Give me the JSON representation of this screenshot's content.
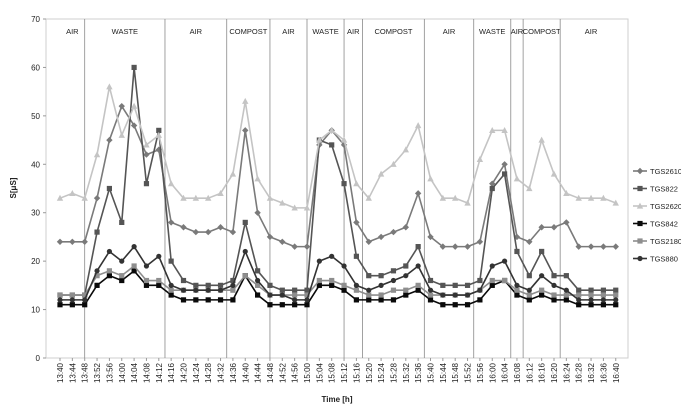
{
  "chart_data": {
    "type": "line",
    "title": "",
    "xlabel": "Time [h]",
    "ylabel": "S[μS]",
    "ylim": [
      0,
      70
    ],
    "yticks": [
      0,
      10,
      20,
      30,
      40,
      50,
      60,
      70
    ],
    "grid": false,
    "legend_position": "right",
    "x": [
      "13:40",
      "13:44",
      "13:48",
      "13:52",
      "13:56",
      "14:00",
      "14:04",
      "14:08",
      "14:12",
      "14:16",
      "14:20",
      "14:24",
      "14:28",
      "14:32",
      "14:36",
      "14:40",
      "14:44",
      "14:48",
      "14:52",
      "14:56",
      "15:00",
      "15:04",
      "15:08",
      "15:12",
      "15:16",
      "15:20",
      "15:24",
      "15:28",
      "15:32",
      "15:36",
      "15:40",
      "15:44",
      "15:48",
      "15:52",
      "15:56",
      "16:00",
      "16:04",
      "16:08",
      "16:12",
      "16:16",
      "16:20",
      "16:24",
      "16:28",
      "16:32",
      "16:36",
      "16:40"
    ],
    "segments": [
      {
        "label": "AIR",
        "start": "13:40",
        "end": "13:48"
      },
      {
        "label": "WASTE",
        "start": "13:48",
        "end": "14:14"
      },
      {
        "label": "AIR",
        "start": "14:14",
        "end": "14:34"
      },
      {
        "label": "COMPOST",
        "start": "14:34",
        "end": "14:48"
      },
      {
        "label": "AIR",
        "start": "14:48",
        "end": "15:00"
      },
      {
        "label": "WASTE",
        "start": "15:00",
        "end": "15:12"
      },
      {
        "label": "AIR",
        "start": "15:12",
        "end": "15:18"
      },
      {
        "label": "COMPOST",
        "start": "15:18",
        "end": "15:38"
      },
      {
        "label": "AIR",
        "start": "15:38",
        "end": "15:54"
      },
      {
        "label": "WASTE",
        "start": "15:54",
        "end": "16:06"
      },
      {
        "label": "AIR",
        "start": "16:06",
        "end": "16:10"
      },
      {
        "label": "COMPOST",
        "start": "16:10",
        "end": "16:22"
      },
      {
        "label": "AIR",
        "start": "16:22",
        "end": "16:42"
      }
    ],
    "series": [
      {
        "name": "TGS2610",
        "color": "#7a7a7a",
        "marker": "diamond",
        "values": [
          24,
          24,
          24,
          33,
          45,
          52,
          48,
          42,
          43,
          28,
          27,
          26,
          26,
          27,
          26,
          47,
          30,
          25,
          24,
          23,
          23,
          44,
          47,
          44,
          28,
          24,
          25,
          26,
          27,
          34,
          25,
          23,
          23,
          23,
          24,
          36,
          40,
          25,
          24,
          27,
          27,
          28,
          23,
          23,
          23,
          23
        ]
      },
      {
        "name": "TGS822",
        "color": "#555555",
        "marker": "square",
        "values": [
          13,
          13,
          13,
          26,
          35,
          28,
          60,
          36,
          47,
          20,
          16,
          15,
          15,
          15,
          16,
          28,
          18,
          15,
          14,
          14,
          14,
          45,
          44,
          36,
          21,
          17,
          17,
          18,
          19,
          23,
          16,
          15,
          15,
          15,
          16,
          35,
          38,
          22,
          17,
          22,
          17,
          17,
          14,
          14,
          14,
          14
        ]
      },
      {
        "name": "TGS2620",
        "color": "#c4c4c4",
        "marker": "triangle",
        "values": [
          33,
          34,
          33,
          42,
          56,
          46,
          52,
          44,
          46,
          36,
          33,
          33,
          33,
          34,
          38,
          53,
          37,
          33,
          32,
          31,
          31,
          45,
          47,
          45,
          36,
          33,
          38,
          40,
          43,
          48,
          37,
          33,
          33,
          32,
          41,
          47,
          47,
          37,
          35,
          45,
          38,
          34,
          33,
          33,
          33,
          32
        ]
      },
      {
        "name": "TGS842",
        "color": "#0a0a0a",
        "marker": "square",
        "values": [
          11,
          11,
          11,
          15,
          17,
          16,
          18,
          15,
          15,
          13,
          12,
          12,
          12,
          12,
          12,
          17,
          13,
          11,
          11,
          11,
          11,
          15,
          15,
          14,
          12,
          12,
          12,
          12,
          13,
          14,
          12,
          11,
          11,
          11,
          12,
          15,
          16,
          13,
          12,
          13,
          12,
          12,
          11,
          11,
          11,
          11
        ]
      },
      {
        "name": "TGS2180",
        "color": "#8e8e8e",
        "marker": "square",
        "values": [
          13,
          13,
          13,
          17,
          18,
          17,
          19,
          16,
          16,
          14,
          14,
          14,
          14,
          14,
          14,
          17,
          15,
          13,
          13,
          13,
          13,
          16,
          16,
          15,
          14,
          13,
          13,
          14,
          14,
          15,
          13,
          13,
          13,
          13,
          14,
          16,
          16,
          14,
          13,
          14,
          13,
          13,
          13,
          13,
          13,
          13
        ]
      },
      {
        "name": "TGS880",
        "color": "#333333",
        "marker": "circle",
        "values": [
          12,
          12,
          12,
          18,
          22,
          20,
          23,
          19,
          21,
          15,
          14,
          14,
          14,
          14,
          15,
          22,
          16,
          13,
          13,
          12,
          12,
          20,
          21,
          19,
          15,
          14,
          15,
          16,
          17,
          19,
          14,
          13,
          13,
          13,
          14,
          19,
          20,
          15,
          14,
          17,
          15,
          14,
          12,
          12,
          12,
          12
        ]
      }
    ]
  }
}
